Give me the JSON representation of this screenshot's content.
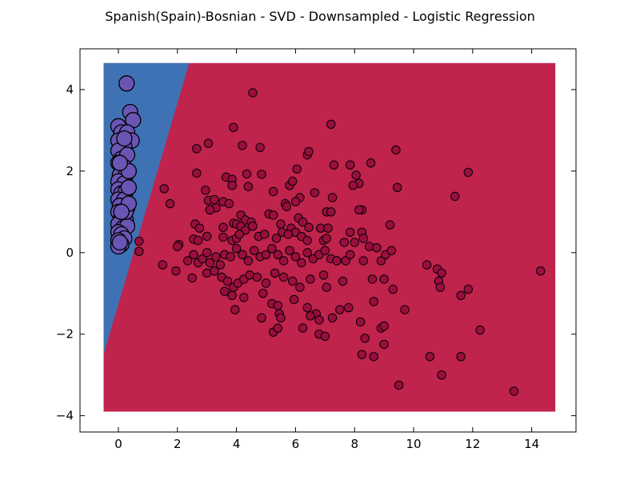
{
  "chart_data": {
    "type": "scatter",
    "title": "Spanish(Spain)-Bosnian - SVD - Downsampled - Logistic Regression",
    "xlabel": "",
    "ylabel": "",
    "xlim": [
      -1.3,
      15.5
    ],
    "ylim": [
      -4.4,
      5.0
    ],
    "x_ticks": [
      0,
      2,
      4,
      6,
      8,
      10,
      12,
      14
    ],
    "y_ticks": [
      -4,
      -2,
      0,
      2,
      4
    ],
    "x_tick_labels": [
      "0",
      "2",
      "4",
      "6",
      "8",
      "10",
      "12",
      "14"
    ],
    "y_tick_labels": [
      "−4",
      "−2",
      "0",
      "2",
      "4"
    ],
    "grid": false,
    "legend": "none",
    "decision_regions": {
      "extent": {
        "x": [
          -0.5,
          14.8
        ],
        "y": [
          -3.9,
          4.65
        ]
      },
      "boundary": [
        [
          -0.5,
          -2.5
        ],
        [
          2.4,
          4.65
        ]
      ],
      "left_color": "#3f72b4",
      "right_color": "#c0234b"
    },
    "series": [
      {
        "marker_color": "#6b55b4",
        "points": [
          [
            0.28,
            4.15
          ],
          [
            0.4,
            3.45
          ],
          [
            0.5,
            3.25
          ],
          [
            0.0,
            3.1
          ],
          [
            0.1,
            2.95
          ],
          [
            0.3,
            2.95
          ],
          [
            0.0,
            2.75
          ],
          [
            0.45,
            2.75
          ],
          [
            0.2,
            2.6
          ],
          [
            0.0,
            2.5
          ],
          [
            0.1,
            2.3
          ],
          [
            0.3,
            2.4
          ],
          [
            0.0,
            2.2
          ],
          [
            0.2,
            2.1
          ],
          [
            0.05,
            1.9
          ],
          [
            0.25,
            1.9
          ],
          [
            0.0,
            1.75
          ],
          [
            0.2,
            1.7
          ],
          [
            0.0,
            1.55
          ],
          [
            0.1,
            1.45
          ],
          [
            0.25,
            1.5
          ],
          [
            0.0,
            1.3
          ],
          [
            0.2,
            1.3
          ],
          [
            0.05,
            1.15
          ],
          [
            0.3,
            1.1
          ],
          [
            0.0,
            1.0
          ],
          [
            0.1,
            0.85
          ],
          [
            0.25,
            0.8
          ],
          [
            0.0,
            0.7
          ],
          [
            0.15,
            0.6
          ],
          [
            0.3,
            0.65
          ],
          [
            0.0,
            0.5
          ],
          [
            0.1,
            0.45
          ],
          [
            0.2,
            0.35
          ],
          [
            0.0,
            0.3
          ],
          [
            0.1,
            0.2
          ],
          [
            0.0,
            0.15
          ],
          [
            0.05,
            0.25
          ],
          [
            0.25,
            1.0
          ],
          [
            0.35,
            1.2
          ],
          [
            0.35,
            1.6
          ],
          [
            0.35,
            2.0
          ],
          [
            0.2,
            2.8
          ],
          [
            0.05,
            2.2
          ],
          [
            0.1,
            1.0
          ]
        ]
      },
      {
        "marker_color": "#9a0e3e",
        "points": [
          [
            4.55,
            3.92
          ],
          [
            7.2,
            3.15
          ],
          [
            3.9,
            3.07
          ],
          [
            2.65,
            2.55
          ],
          [
            3.05,
            2.68
          ],
          [
            4.2,
            2.63
          ],
          [
            4.8,
            2.58
          ],
          [
            6.4,
            2.4
          ],
          [
            6.45,
            2.48
          ],
          [
            9.4,
            2.52
          ],
          [
            7.3,
            2.15
          ],
          [
            7.85,
            2.15
          ],
          [
            8.55,
            2.2
          ],
          [
            11.85,
            1.97
          ],
          [
            6.05,
            2.05
          ],
          [
            2.65,
            1.95
          ],
          [
            4.35,
            1.93
          ],
          [
            4.85,
            1.92
          ],
          [
            3.65,
            1.85
          ],
          [
            3.85,
            1.8
          ],
          [
            8.05,
            1.9
          ],
          [
            5.8,
            1.65
          ],
          [
            5.9,
            1.75
          ],
          [
            8.15,
            1.7
          ],
          [
            9.45,
            1.6
          ],
          [
            1.55,
            1.57
          ],
          [
            3.85,
            1.65
          ],
          [
            2.95,
            1.53
          ],
          [
            4.4,
            1.62
          ],
          [
            5.25,
            1.5
          ],
          [
            6.65,
            1.47
          ],
          [
            7.25,
            1.35
          ],
          [
            7.95,
            1.65
          ],
          [
            11.4,
            1.38
          ],
          [
            1.75,
            1.2
          ],
          [
            3.05,
            1.28
          ],
          [
            3.25,
            1.3
          ],
          [
            3.55,
            1.25
          ],
          [
            3.75,
            1.2
          ],
          [
            5.65,
            1.2
          ],
          [
            6.15,
            1.35
          ],
          [
            6.0,
            1.25
          ],
          [
            3.3,
            1.1
          ],
          [
            5.7,
            1.13
          ],
          [
            3.1,
            1.05
          ],
          [
            5.1,
            0.95
          ],
          [
            5.25,
            0.92
          ],
          [
            7.05,
            1.0
          ],
          [
            7.2,
            1.0
          ],
          [
            8.25,
            1.05
          ],
          [
            8.15,
            1.05
          ],
          [
            4.15,
            0.92
          ],
          [
            4.3,
            0.8
          ],
          [
            4.5,
            0.75
          ],
          [
            6.1,
            0.85
          ],
          [
            6.25,
            0.75
          ],
          [
            2.6,
            0.7
          ],
          [
            2.75,
            0.6
          ],
          [
            3.55,
            0.62
          ],
          [
            3.9,
            0.72
          ],
          [
            4.0,
            0.7
          ],
          [
            4.15,
            0.65
          ],
          [
            4.3,
            0.55
          ],
          [
            4.55,
            0.65
          ],
          [
            5.5,
            0.7
          ],
          [
            5.85,
            0.6
          ],
          [
            6.0,
            0.5
          ],
          [
            6.45,
            0.62
          ],
          [
            6.85,
            0.6
          ],
          [
            7.1,
            0.6
          ],
          [
            7.85,
            0.5
          ],
          [
            8.25,
            0.5
          ],
          [
            9.2,
            0.68
          ],
          [
            2.05,
            0.2
          ],
          [
            2.55,
            0.33
          ],
          [
            2.7,
            0.3
          ],
          [
            3.0,
            0.4
          ],
          [
            3.55,
            0.38
          ],
          [
            3.85,
            0.3
          ],
          [
            4.0,
            0.35
          ],
          [
            4.1,
            0.45
          ],
          [
            4.75,
            0.4
          ],
          [
            4.95,
            0.45
          ],
          [
            5.35,
            0.35
          ],
          [
            5.55,
            0.5
          ],
          [
            5.75,
            0.45
          ],
          [
            6.2,
            0.4
          ],
          [
            6.4,
            0.3
          ],
          [
            6.95,
            0.3
          ],
          [
            7.05,
            0.35
          ],
          [
            7.65,
            0.25
          ],
          [
            8.0,
            0.25
          ],
          [
            8.3,
            0.35
          ],
          [
            8.5,
            0.15
          ],
          [
            8.75,
            0.12
          ],
          [
            0.7,
            0.28
          ],
          [
            0.7,
            0.03
          ],
          [
            2.0,
            0.15
          ],
          [
            2.35,
            -0.2
          ],
          [
            2.55,
            -0.05
          ],
          [
            2.7,
            -0.25
          ],
          [
            2.85,
            -0.15
          ],
          [
            3.0,
            0.0
          ],
          [
            3.1,
            -0.25
          ],
          [
            3.3,
            -0.1
          ],
          [
            3.45,
            -0.3
          ],
          [
            3.6,
            -0.05
          ],
          [
            3.8,
            -0.1
          ],
          [
            4.0,
            0.1
          ],
          [
            4.2,
            -0.05
          ],
          [
            4.4,
            -0.2
          ],
          [
            4.6,
            0.05
          ],
          [
            4.8,
            -0.1
          ],
          [
            5.0,
            -0.05
          ],
          [
            5.2,
            0.1
          ],
          [
            5.4,
            -0.05
          ],
          [
            5.6,
            -0.2
          ],
          [
            5.8,
            0.05
          ],
          [
            6.0,
            -0.1
          ],
          [
            6.2,
            -0.25
          ],
          [
            6.4,
            0.0
          ],
          [
            6.6,
            -0.15
          ],
          [
            6.8,
            -0.05
          ],
          [
            7.0,
            0.05
          ],
          [
            7.2,
            -0.15
          ],
          [
            7.4,
            -0.2
          ],
          [
            7.7,
            -0.2
          ],
          [
            7.85,
            -0.05
          ],
          [
            8.3,
            -0.2
          ],
          [
            8.9,
            -0.2
          ],
          [
            9.05,
            -0.05
          ],
          [
            9.25,
            0.05
          ],
          [
            1.5,
            -0.3
          ],
          [
            1.95,
            -0.45
          ],
          [
            2.5,
            -0.62
          ],
          [
            3.0,
            -0.5
          ],
          [
            3.25,
            -0.45
          ],
          [
            3.5,
            -0.6
          ],
          [
            3.7,
            -0.7
          ],
          [
            3.9,
            -0.85
          ],
          [
            4.05,
            -0.75
          ],
          [
            4.25,
            -0.65
          ],
          [
            4.45,
            -0.55
          ],
          [
            4.7,
            -0.6
          ],
          [
            5.0,
            -0.75
          ],
          [
            5.3,
            -0.5
          ],
          [
            5.6,
            -0.6
          ],
          [
            5.9,
            -0.7
          ],
          [
            6.15,
            -0.85
          ],
          [
            6.5,
            -0.65
          ],
          [
            6.95,
            -0.55
          ],
          [
            7.05,
            -0.85
          ],
          [
            7.6,
            -0.7
          ],
          [
            8.6,
            -0.65
          ],
          [
            9.0,
            -0.65
          ],
          [
            9.3,
            -0.9
          ],
          [
            3.6,
            -0.95
          ],
          [
            3.85,
            -1.05
          ],
          [
            4.25,
            -1.1
          ],
          [
            4.9,
            -1.0
          ],
          [
            5.2,
            -1.25
          ],
          [
            5.95,
            -1.15
          ],
          [
            6.4,
            -1.35
          ],
          [
            6.7,
            -1.5
          ],
          [
            7.5,
            -1.4
          ],
          [
            7.8,
            -1.35
          ],
          [
            8.65,
            -1.2
          ],
          [
            9.7,
            -1.4
          ],
          [
            3.95,
            -1.4
          ],
          [
            4.85,
            -1.6
          ],
          [
            5.4,
            -1.3
          ],
          [
            5.45,
            -1.5
          ],
          [
            5.5,
            -1.6
          ],
          [
            6.25,
            -1.85
          ],
          [
            6.5,
            -1.55
          ],
          [
            6.8,
            -1.65
          ],
          [
            7.25,
            -1.6
          ],
          [
            8.2,
            -1.7
          ],
          [
            8.9,
            -1.85
          ],
          [
            9.0,
            -1.8
          ],
          [
            5.25,
            -1.95
          ],
          [
            5.4,
            -1.85
          ],
          [
            6.8,
            -2.0
          ],
          [
            7.0,
            -2.05
          ],
          [
            8.35,
            -2.1
          ],
          [
            9.0,
            -2.25
          ],
          [
            8.25,
            -2.5
          ],
          [
            8.65,
            -2.55
          ],
          [
            10.55,
            -2.55
          ],
          [
            11.6,
            -2.55
          ],
          [
            10.95,
            -3.0
          ],
          [
            9.5,
            -3.25
          ],
          [
            13.4,
            -3.4
          ],
          [
            10.45,
            -0.3
          ],
          [
            10.8,
            -0.4
          ],
          [
            10.85,
            -0.7
          ],
          [
            10.95,
            -0.5
          ],
          [
            10.9,
            -0.85
          ],
          [
            11.6,
            -1.05
          ],
          [
            11.85,
            -0.9
          ],
          [
            12.25,
            -1.9
          ],
          [
            14.3,
            -0.45
          ]
        ]
      }
    ]
  }
}
